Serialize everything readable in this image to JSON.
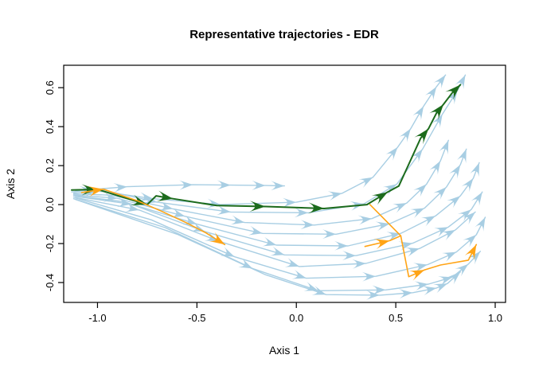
{
  "chart_data": {
    "type": "line",
    "title": "Representative trajectories - EDR",
    "xlabel": "Axis 1",
    "ylabel": "Axis 2",
    "xlim": [
      -1.17,
      1.052
    ],
    "ylim": [
      -0.502,
      0.715
    ],
    "x_ticks": [
      -1.0,
      -0.5,
      0.0,
      0.5,
      1.0
    ],
    "x_tick_labels": [
      "-1.0",
      "-0.5",
      "0.0",
      "0.5",
      "1.0"
    ],
    "y_ticks": [
      -0.4,
      -0.2,
      0.0,
      0.2,
      0.4,
      0.6
    ],
    "y_tick_labels": [
      "-0.4",
      "-0.2",
      "0.0",
      "0.2",
      "0.4",
      "0.6"
    ],
    "grid": false,
    "legend": "none",
    "colors": {
      "blue": "#A8CEE3",
      "green": "#1C6B1C",
      "orange": "#FFA416"
    },
    "series": [
      {
        "name": "trajectory-1",
        "color": "blue",
        "width": 1.4,
        "arrow_scale": 0.95,
        "points": [
          [
            -1.13,
            0.065
          ],
          [
            -1.02,
            0.078
          ],
          [
            -0.85,
            0.092
          ],
          [
            -0.52,
            0.102
          ],
          [
            -0.33,
            0.1
          ],
          [
            -0.155,
            0.098
          ],
          [
            -0.06,
            0.096
          ]
        ],
        "arrows": [
          1,
          2,
          3,
          4,
          5,
          6
        ]
      },
      {
        "name": "trajectory-2",
        "color": "blue",
        "width": 1.4,
        "arrow_scale": 0.95,
        "points": [
          [
            -1.12,
            0.06
          ],
          [
            -1.0,
            0.07
          ],
          [
            -0.72,
            0.03
          ],
          [
            -0.38,
            0.0
          ],
          [
            0.0,
            0.012
          ],
          [
            0.23,
            0.058
          ],
          [
            0.385,
            0.14
          ],
          [
            0.51,
            0.295
          ],
          [
            0.575,
            0.39
          ],
          [
            0.64,
            0.505
          ],
          [
            0.705,
            0.605
          ],
          [
            0.75,
            0.665
          ]
        ],
        "arrows": [
          1,
          2,
          3,
          4,
          5,
          6,
          7,
          8,
          9,
          10,
          11
        ]
      },
      {
        "name": "trajectory-3",
        "color": "blue",
        "width": 1.4,
        "arrow_scale": 0.95,
        "points": [
          [
            -1.11,
            0.072
          ],
          [
            -0.97,
            0.074
          ],
          [
            -0.7,
            0.012
          ],
          [
            -0.33,
            -0.038
          ],
          [
            0.06,
            -0.042
          ],
          [
            0.34,
            0.004
          ],
          [
            0.505,
            0.105
          ],
          [
            0.635,
            0.285
          ],
          [
            0.735,
            0.465
          ],
          [
            0.81,
            0.585
          ],
          [
            0.85,
            0.665
          ]
        ],
        "arrows": [
          2,
          3,
          4,
          5,
          6,
          7,
          8,
          9,
          10
        ]
      },
      {
        "name": "trajectory-4",
        "color": "blue",
        "width": 1.4,
        "arrow_scale": 0.95,
        "points": [
          [
            -1.12,
            0.055
          ],
          [
            -0.93,
            0.048
          ],
          [
            -0.62,
            -0.022
          ],
          [
            -0.26,
            -0.092
          ],
          [
            0.09,
            -0.105
          ],
          [
            0.38,
            -0.072
          ],
          [
            0.555,
            0.008
          ],
          [
            0.655,
            0.105
          ],
          [
            0.725,
            0.225
          ],
          [
            0.765,
            0.33
          ]
        ],
        "arrows": [
          2,
          3,
          4,
          5,
          6,
          7,
          8,
          9
        ]
      },
      {
        "name": "trajectory-5",
        "color": "blue",
        "width": 1.4,
        "arrow_scale": 0.95,
        "points": [
          [
            -1.12,
            0.05
          ],
          [
            -0.9,
            0.032
          ],
          [
            -0.56,
            -0.06
          ],
          [
            -0.17,
            -0.148
          ],
          [
            0.2,
            -0.152
          ],
          [
            0.47,
            -0.098
          ],
          [
            0.645,
            -0.018
          ],
          [
            0.755,
            0.09
          ],
          [
            0.825,
            0.205
          ],
          [
            0.855,
            0.285
          ]
        ],
        "arrows": [
          1,
          2,
          3,
          4,
          5,
          6,
          7,
          8,
          9
        ]
      },
      {
        "name": "trajectory-6",
        "color": "blue",
        "width": 1.4,
        "arrow_scale": 0.95,
        "points": [
          [
            -1.12,
            0.046
          ],
          [
            -0.87,
            0.015
          ],
          [
            -0.5,
            -0.1
          ],
          [
            -0.1,
            -0.208
          ],
          [
            0.26,
            -0.212
          ],
          [
            0.525,
            -0.148
          ],
          [
            0.7,
            -0.058
          ],
          [
            0.825,
            0.045
          ],
          [
            0.89,
            0.135
          ],
          [
            0.92,
            0.215
          ]
        ],
        "arrows": [
          2,
          3,
          4,
          5,
          6,
          7,
          8,
          9
        ]
      },
      {
        "name": "trajectory-7",
        "color": "blue",
        "width": 1.4,
        "arrow_scale": 0.95,
        "points": [
          [
            -1.11,
            0.042
          ],
          [
            -0.83,
            0.002
          ],
          [
            -0.46,
            -0.138
          ],
          [
            -0.06,
            -0.258
          ],
          [
            0.3,
            -0.262
          ],
          [
            0.585,
            -0.198
          ],
          [
            0.765,
            -0.115
          ],
          [
            0.88,
            -0.025
          ],
          [
            0.935,
            0.065
          ]
        ],
        "arrows": [
          1,
          2,
          3,
          4,
          5,
          6,
          7,
          8
        ]
      },
      {
        "name": "trajectory-8",
        "color": "blue",
        "width": 1.4,
        "arrow_scale": 0.95,
        "points": [
          [
            -1.12,
            0.038
          ],
          [
            -0.79,
            -0.028
          ],
          [
            -0.39,
            -0.188
          ],
          [
            0.015,
            -0.318
          ],
          [
            0.35,
            -0.302
          ],
          [
            0.62,
            -0.225
          ],
          [
            0.8,
            -0.13
          ],
          [
            0.9,
            -0.038
          ]
        ],
        "arrows": [
          1,
          2,
          3,
          4,
          5,
          6,
          7
        ]
      },
      {
        "name": "trajectory-9",
        "color": "blue",
        "width": 1.4,
        "arrow_scale": 0.95,
        "points": [
          [
            -1.11,
            0.034
          ],
          [
            -0.73,
            -0.078
          ],
          [
            -0.31,
            -0.268
          ],
          [
            0.05,
            -0.378
          ],
          [
            0.4,
            -0.368
          ],
          [
            0.66,
            -0.308
          ],
          [
            0.805,
            -0.243
          ],
          [
            0.905,
            -0.155
          ],
          [
            0.95,
            -0.065
          ]
        ],
        "arrows": [
          2,
          3,
          4,
          5,
          6,
          7,
          8
        ]
      },
      {
        "name": "trajectory-10",
        "color": "blue",
        "width": 1.4,
        "arrow_scale": 0.95,
        "points": [
          [
            -1.12,
            0.03
          ],
          [
            -0.66,
            -0.118
          ],
          [
            -0.22,
            -0.328
          ],
          [
            0.11,
            -0.442
          ],
          [
            0.45,
            -0.438
          ],
          [
            0.665,
            -0.408
          ],
          [
            0.785,
            -0.372
          ],
          [
            0.865,
            -0.305
          ],
          [
            0.925,
            -0.24
          ]
        ],
        "arrows": [
          2,
          3,
          4,
          5,
          6,
          7,
          8
        ]
      },
      {
        "name": "trajectory-11",
        "color": "blue",
        "width": 1.4,
        "arrow_scale": 0.95,
        "points": [
          [
            -1.11,
            0.026
          ],
          [
            -0.6,
            -0.152
          ],
          [
            -0.155,
            -0.36
          ],
          [
            0.15,
            -0.462
          ],
          [
            0.42,
            -0.465
          ],
          [
            0.585,
            -0.452
          ],
          [
            0.705,
            -0.428
          ],
          [
            0.76,
            -0.405
          ],
          [
            0.825,
            -0.345
          ]
        ],
        "arrows": [
          3,
          4,
          5,
          6,
          7,
          8
        ]
      },
      {
        "name": "highlight-green",
        "color": "green",
        "width": 2,
        "arrow_scale": 1.1,
        "points": [
          [
            -1.13,
            0.075
          ],
          [
            -1.0,
            0.078
          ],
          [
            -0.75,
            0.0
          ],
          [
            -0.705,
            0.045
          ],
          [
            -0.62,
            0.03
          ],
          [
            -0.4,
            -0.005
          ],
          [
            -0.155,
            -0.01
          ],
          [
            0.14,
            -0.02
          ],
          [
            0.355,
            0.0
          ],
          [
            0.46,
            0.065
          ],
          [
            0.515,
            0.095
          ],
          [
            0.625,
            0.34
          ],
          [
            0.665,
            0.39
          ],
          [
            0.705,
            0.47
          ],
          [
            0.74,
            0.515
          ],
          [
            0.785,
            0.575
          ],
          [
            0.825,
            0.615
          ]
        ],
        "arrows": [
          1,
          2,
          4,
          6,
          7,
          9,
          12,
          14,
          16
        ]
      },
      {
        "name": "highlight-orange-1",
        "color": "orange",
        "width": 1.6,
        "arrow_scale": 1.05,
        "points": [
          [
            -1.08,
            0.062
          ],
          [
            -0.97,
            0.079
          ],
          [
            -0.8,
            0.02
          ],
          [
            -0.68,
            -0.033
          ],
          [
            -0.55,
            -0.095
          ],
          [
            -0.455,
            -0.145
          ],
          [
            -0.36,
            -0.205
          ]
        ],
        "arrows": [
          1,
          6
        ]
      },
      {
        "name": "highlight-orange-2",
        "color": "orange",
        "width": 1.6,
        "arrow_scale": 1.05,
        "points": [
          [
            0.37,
            0.0
          ],
          [
            0.525,
            -0.16
          ],
          [
            0.565,
            -0.37
          ],
          [
            0.645,
            -0.335
          ],
          [
            0.725,
            -0.31
          ],
          [
            0.865,
            -0.285
          ],
          [
            0.905,
            -0.205
          ]
        ],
        "arrows": [
          3,
          6
        ]
      },
      {
        "name": "highlight-orange-3",
        "color": "orange",
        "width": 1.6,
        "arrow_scale": 1.05,
        "points": [
          [
            0.345,
            -0.215
          ],
          [
            0.47,
            -0.185
          ],
          [
            0.525,
            -0.16
          ]
        ],
        "arrows": [
          1
        ]
      }
    ]
  }
}
